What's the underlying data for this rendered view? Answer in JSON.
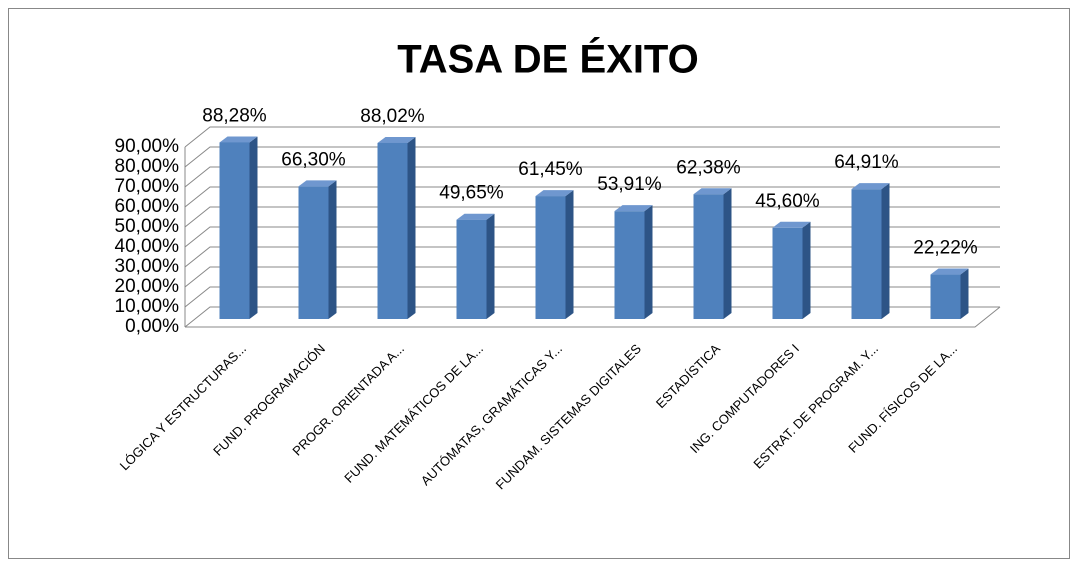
{
  "chart_data": {
    "type": "bar3d",
    "title": "TASA DE ÉXITO",
    "categories": [
      "LÓGICA Y ESTRUCTURAS...",
      "FUND. PROGRAMACIÓN",
      "PROGR. ORIENTADA A...",
      "FUND. MATEMÁTICOS DE LA...",
      "AUTÓMATAS, GRAMÁTICAS Y...",
      "FUNDAM. SISTEMAS DIGITALES",
      "ESTADÍSTICA",
      "ING. COMPUTADORES I",
      "ESTRAT. DE PROGRAM. Y...",
      "FUND. FÍSICOS DE LA..."
    ],
    "values": [
      88.28,
      66.3,
      88.02,
      49.65,
      61.45,
      53.91,
      62.38,
      45.6,
      64.91,
      22.22
    ],
    "value_labels": [
      "88,28%",
      "66,30%",
      "88,02%",
      "49,65%",
      "61,45%",
      "53,91%",
      "62,38%",
      "45,60%",
      "64,91%",
      "22,22%"
    ],
    "color": "#4f81bd",
    "ylim": [
      0,
      90
    ],
    "yticks": [
      {
        "value": 0,
        "label": "0,00%"
      },
      {
        "value": 10,
        "label": "10,00%"
      },
      {
        "value": 20,
        "label": "20,00%"
      },
      {
        "value": 30,
        "label": "30,00%"
      },
      {
        "value": 40,
        "label": "40,00%"
      },
      {
        "value": 50,
        "label": "50,00%"
      },
      {
        "value": 60,
        "label": "60,00%"
      },
      {
        "value": 70,
        "label": "70,00%"
      },
      {
        "value": 80,
        "label": "80,00%"
      },
      {
        "value": 90,
        "label": "90,00%"
      }
    ],
    "grid": true
  }
}
